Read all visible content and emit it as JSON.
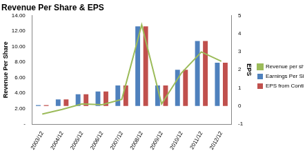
{
  "chart_data": {
    "type": "bar",
    "title": "Revenue Per Share & EPS",
    "y_label": "Revenue Per Share",
    "y2_label": "EPS",
    "categories": [
      "2003/12",
      "2004/12",
      "2005/12",
      "2006/12",
      "2007/12",
      "2008/12",
      "2009/12",
      "2010/12",
      "2011/12",
      "2012/12"
    ],
    "series": [
      {
        "name": "Earnings Per Share (EPS)",
        "type": "bar",
        "color": "#4f81bd",
        "axis": "y2",
        "values": [
          0.05,
          0.37,
          0.65,
          0.8,
          1.14,
          4.4,
          1.14,
          2.0,
          3.59,
          2.39
        ]
      },
      {
        "name": "EPS from Continuing Operations",
        "type": "bar",
        "color": "#c0504d",
        "axis": "y2",
        "values": [
          0.05,
          0.37,
          0.65,
          0.8,
          1.14,
          4.4,
          1.14,
          2.0,
          3.59,
          2.39
        ]
      },
      {
        "name": "Revenue per share",
        "type": "line",
        "color": "#9bbb59",
        "marker": "none",
        "values": [
          1.3,
          1.9,
          2.6,
          2.5,
          3.2,
          12.8,
          2.6,
          6.6,
          9.3,
          8.1
        ]
      }
    ],
    "ylim": [
      0,
      14
    ],
    "yticks": [
      {
        "value": 0,
        "label": "-"
      },
      {
        "value": 2,
        "label": "2.00"
      },
      {
        "value": 4,
        "label": "4.00"
      },
      {
        "value": 6,
        "label": "6.00"
      },
      {
        "value": 8,
        "label": "8.00"
      },
      {
        "value": 10,
        "label": "10.00"
      },
      {
        "value": 12,
        "label": "12.00"
      },
      {
        "value": 14,
        "label": "14.00"
      }
    ],
    "y2lim": [
      -1,
      5
    ],
    "y2ticks": [
      -1,
      0,
      1,
      2,
      3,
      4,
      5
    ],
    "grid": false,
    "legend": "right"
  }
}
